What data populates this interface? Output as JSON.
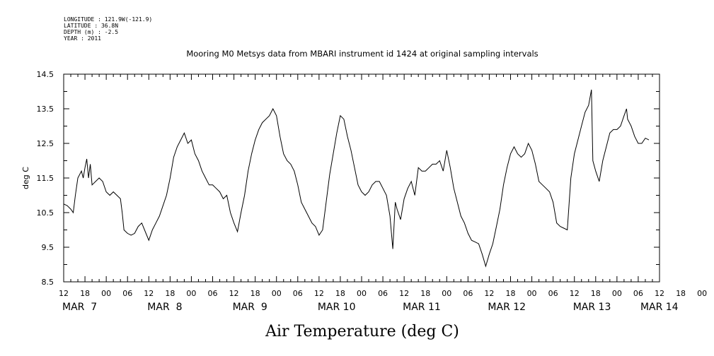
{
  "header": {
    "longitude": "LONGITUDE : 121.9W(-121.9)",
    "latitude": "LATITUDE : 36.8N",
    "depth": "DEPTH (m) : -2.5",
    "year": "YEAR : 2011"
  },
  "chart_data": {
    "type": "line",
    "title": "Mooring M0 Metsys data from MBARI instrument id 1424 at original sampling intervals",
    "xlabel": "Air Temperature (deg C)",
    "ylabel": "deg C",
    "ylim": [
      8.5,
      14.5
    ],
    "xlim": [
      0,
      168
    ],
    "x_unit": "hours since MAR 7 12:00",
    "yticks": [
      "8.5",
      "9.5",
      "10.5",
      "11.5",
      "12.5",
      "13.5",
      "14.5"
    ],
    "xtick_labels": [
      "12",
      "18",
      "00",
      "06",
      "12",
      "18",
      "00",
      "06",
      "12",
      "18",
      "00",
      "06",
      "12",
      "18",
      "00",
      "06",
      "12",
      "18",
      "00",
      "06",
      "12",
      "18",
      "00",
      "06",
      "12",
      "18",
      "00",
      "06",
      "12",
      "18",
      "00",
      "06",
      "12",
      "18",
      "00",
      "06",
      "12"
    ],
    "date_labels": [
      {
        "text": "MAR  7",
        "x": 0
      },
      {
        "text": "MAR  8",
        "x": 24
      },
      {
        "text": "MAR  9",
        "x": 48
      },
      {
        "text": "MAR 10",
        "x": 72
      },
      {
        "text": "MAR 11",
        "x": 96
      },
      {
        "text": "MAR 12",
        "x": 120
      },
      {
        "text": "MAR 13",
        "x": 144
      },
      {
        "text": "MAR 14",
        "x": 163
      }
    ],
    "grid": false,
    "series": [
      {
        "color": "#000000",
        "points": [
          [
            0,
            10.75
          ],
          [
            1,
            10.7
          ],
          [
            2,
            10.6
          ],
          [
            2.7,
            10.5
          ],
          [
            3.3,
            11.0
          ],
          [
            4,
            11.5
          ],
          [
            5,
            11.7
          ],
          [
            5.5,
            11.5
          ],
          [
            6,
            11.8
          ],
          [
            6.5,
            12.05
          ],
          [
            7,
            11.5
          ],
          [
            7.5,
            11.9
          ],
          [
            8,
            11.3
          ],
          [
            9,
            11.4
          ],
          [
            10,
            11.5
          ],
          [
            11,
            11.4
          ],
          [
            12,
            11.1
          ],
          [
            13,
            11.0
          ],
          [
            14,
            11.1
          ],
          [
            15,
            11.0
          ],
          [
            16,
            10.9
          ],
          [
            16.5,
            10.5
          ],
          [
            17,
            10.0
          ],
          [
            18,
            9.9
          ],
          [
            19,
            9.85
          ],
          [
            20,
            9.9
          ],
          [
            21,
            10.1
          ],
          [
            22,
            10.2
          ],
          [
            23,
            9.95
          ],
          [
            24,
            9.7
          ],
          [
            25,
            10.0
          ],
          [
            26,
            10.2
          ],
          [
            27,
            10.4
          ],
          [
            28,
            10.7
          ],
          [
            29,
            11.0
          ],
          [
            30,
            11.5
          ],
          [
            31,
            12.1
          ],
          [
            32,
            12.4
          ],
          [
            33,
            12.6
          ],
          [
            34,
            12.8
          ],
          [
            35,
            12.5
          ],
          [
            36,
            12.6
          ],
          [
            37,
            12.2
          ],
          [
            38,
            12.0
          ],
          [
            39,
            11.7
          ],
          [
            40,
            11.5
          ],
          [
            41,
            11.3
          ],
          [
            42,
            11.3
          ],
          [
            43,
            11.2
          ],
          [
            44,
            11.1
          ],
          [
            45,
            10.9
          ],
          [
            46,
            11.0
          ],
          [
            47,
            10.5
          ],
          [
            48,
            10.2
          ],
          [
            49,
            9.95
          ],
          [
            50,
            10.5
          ],
          [
            51,
            11.0
          ],
          [
            52,
            11.7
          ],
          [
            53,
            12.2
          ],
          [
            54,
            12.6
          ],
          [
            55,
            12.9
          ],
          [
            56,
            13.1
          ],
          [
            57,
            13.2
          ],
          [
            58,
            13.3
          ],
          [
            59,
            13.5
          ],
          [
            60,
            13.3
          ],
          [
            61,
            12.7
          ],
          [
            62,
            12.2
          ],
          [
            63,
            12.0
          ],
          [
            64,
            11.9
          ],
          [
            65,
            11.7
          ],
          [
            66,
            11.3
          ],
          [
            67,
            10.8
          ],
          [
            68,
            10.6
          ],
          [
            69,
            10.4
          ],
          [
            70,
            10.2
          ],
          [
            71,
            10.1
          ],
          [
            72,
            9.85
          ],
          [
            73,
            10.0
          ],
          [
            74,
            10.8
          ],
          [
            75,
            11.6
          ],
          [
            76,
            12.2
          ],
          [
            77,
            12.8
          ],
          [
            78,
            13.3
          ],
          [
            79,
            13.2
          ],
          [
            80,
            12.7
          ],
          [
            81,
            12.3
          ],
          [
            82,
            11.8
          ],
          [
            83,
            11.3
          ],
          [
            84,
            11.1
          ],
          [
            85,
            11.0
          ],
          [
            86,
            11.1
          ],
          [
            87,
            11.3
          ],
          [
            88,
            11.4
          ],
          [
            89,
            11.4
          ],
          [
            90,
            11.2
          ],
          [
            91,
            11.0
          ],
          [
            92,
            10.4
          ],
          [
            92.8,
            9.45
          ],
          [
            93.5,
            10.8
          ],
          [
            94,
            10.6
          ],
          [
            95,
            10.3
          ],
          [
            96,
            10.9
          ],
          [
            97,
            11.2
          ],
          [
            98,
            11.4
          ],
          [
            99,
            11.0
          ],
          [
            100,
            11.8
          ],
          [
            101,
            11.7
          ],
          [
            102,
            11.7
          ],
          [
            103,
            11.8
          ],
          [
            104,
            11.9
          ],
          [
            105,
            11.9
          ],
          [
            106,
            12.0
          ],
          [
            107,
            11.7
          ],
          [
            108,
            12.3
          ],
          [
            109,
            11.8
          ],
          [
            110,
            11.2
          ],
          [
            111,
            10.8
          ],
          [
            112,
            10.4
          ],
          [
            113,
            10.2
          ],
          [
            114,
            9.9
          ],
          [
            115,
            9.7
          ],
          [
            116,
            9.65
          ],
          [
            117,
            9.6
          ],
          [
            118,
            9.3
          ],
          [
            119,
            8.95
          ],
          [
            120,
            9.3
          ],
          [
            121,
            9.6
          ],
          [
            122,
            10.1
          ],
          [
            123,
            10.6
          ],
          [
            124,
            11.3
          ],
          [
            125,
            11.8
          ],
          [
            126,
            12.2
          ],
          [
            127,
            12.4
          ],
          [
            128,
            12.2
          ],
          [
            129,
            12.1
          ],
          [
            130,
            12.2
          ],
          [
            131,
            12.5
          ],
          [
            132,
            12.3
          ],
          [
            133,
            11.9
          ],
          [
            134,
            11.4
          ],
          [
            135,
            11.3
          ],
          [
            136,
            11.2
          ],
          [
            137,
            11.1
          ],
          [
            138,
            10.8
          ],
          [
            139,
            10.2
          ],
          [
            140,
            10.1
          ],
          [
            141,
            10.05
          ],
          [
            142,
            10.0
          ],
          [
            143,
            11.5
          ],
          [
            144,
            12.2
          ],
          [
            145,
            12.6
          ],
          [
            146,
            13.0
          ],
          [
            147,
            13.4
          ],
          [
            148,
            13.6
          ],
          [
            148.8,
            14.05
          ],
          [
            149.2,
            12.0
          ],
          [
            150,
            11.7
          ],
          [
            151,
            11.4
          ],
          [
            152,
            12.0
          ],
          [
            153,
            12.4
          ],
          [
            154,
            12.8
          ],
          [
            155,
            12.9
          ],
          [
            156,
            12.9
          ],
          [
            157,
            13.0
          ],
          [
            158,
            13.3
          ],
          [
            158.7,
            13.5
          ],
          [
            159,
            13.2
          ],
          [
            160,
            13.0
          ],
          [
            161,
            12.7
          ],
          [
            162,
            12.5
          ],
          [
            163,
            12.5
          ],
          [
            164,
            12.65
          ],
          [
            165,
            12.6
          ]
        ]
      }
    ]
  }
}
